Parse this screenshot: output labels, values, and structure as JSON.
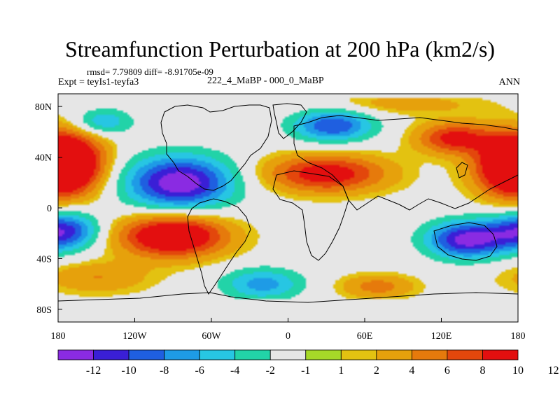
{
  "header": {
    "title": "Streamfunction Perturbation at 200 hPa (km2/s)",
    "stats": "rmsd= 7.79809 diff= -8.91705e-09",
    "left_label": "Expt = teyIs1-teyfa3",
    "center_label": "222_4_MaBP - 000_0_MaBP",
    "right_label": "ANN"
  },
  "map": {
    "projection": "cylindrical-equidistant",
    "lon_range": [
      -180,
      180
    ],
    "lat_range": [
      -90,
      90
    ],
    "lon_ticks": [
      {
        "value": -180,
        "label": "180"
      },
      {
        "value": -120,
        "label": "120W"
      },
      {
        "value": -60,
        "label": "60W"
      },
      {
        "value": 0,
        "label": "0"
      },
      {
        "value": 60,
        "label": "60E"
      },
      {
        "value": 120,
        "label": "120E"
      },
      {
        "value": 180,
        "label": "180"
      }
    ],
    "lat_ticks": [
      {
        "value": 80,
        "label": "80N"
      },
      {
        "value": 40,
        "label": "40N"
      },
      {
        "value": 0,
        "label": "0"
      },
      {
        "value": -40,
        "label": "40S"
      },
      {
        "value": -80,
        "label": "80S"
      }
    ],
    "anomalies": [
      {
        "name": "N Atlantic trough",
        "lon": -85,
        "lat": 20,
        "value": -14,
        "rx": 40,
        "ry": 20
      },
      {
        "name": "Asia ridge",
        "lon": 30,
        "lat": 27,
        "value": 10,
        "rx": 45,
        "ry": 14
      },
      {
        "name": "S America ridge",
        "lon": -90,
        "lat": -22,
        "value": 13,
        "rx": 40,
        "ry": 16
      },
      {
        "name": "Pacific ridge N",
        "lon": -175,
        "lat": 38,
        "value": 11,
        "rx": 28,
        "ry": 22
      },
      {
        "name": "Pacific ridge N east",
        "lon": 178,
        "lat": 30,
        "value": 10,
        "rx": 30,
        "ry": 22
      },
      {
        "name": "Pacific trough S",
        "lon": -175,
        "lat": -18,
        "value": -11,
        "rx": 25,
        "ry": 14
      },
      {
        "name": "Australia trough",
        "lon": 140,
        "lat": -25,
        "value": -13,
        "rx": 30,
        "ry": 14
      },
      {
        "name": "Eurasia trough",
        "lon": 35,
        "lat": 65,
        "value": -10,
        "rx": 30,
        "ry": 12
      },
      {
        "name": "NE Asia ridge",
        "lon": 130,
        "lat": 55,
        "value": 9,
        "rx": 28,
        "ry": 12
      },
      {
        "name": "NW Pacific trough",
        "lon": -145,
        "lat": 68,
        "value": -6,
        "rx": 22,
        "ry": 10
      },
      {
        "name": "S Atlantic trough",
        "lon": -20,
        "lat": -60,
        "value": -7,
        "rx": 30,
        "ry": 12
      },
      {
        "name": "SE Pacific ridge",
        "lon": -150,
        "lat": -55,
        "value": 4,
        "rx": 40,
        "ry": 12
      },
      {
        "name": "S Indian ridge",
        "lon": 70,
        "lat": -62,
        "value": 5,
        "rx": 28,
        "ry": 9
      },
      {
        "name": "Arctic ridge",
        "lon": 90,
        "lat": 82,
        "value": 3,
        "rx": 60,
        "ry": 8
      }
    ],
    "coastlines": "coarse-grid continental outlines"
  },
  "colorbar": {
    "colors": [
      "#8a2be2",
      "#3a1fd6",
      "#1f5fe0",
      "#1e9be6",
      "#27c6e3",
      "#22d3a8",
      "#e6e6e6",
      "#a6d928",
      "#e3c211",
      "#e6a10c",
      "#e67a0c",
      "#e3470c",
      "#e30f0f"
    ],
    "labels": [
      "-12",
      "-10",
      "-8",
      "-6",
      "-4",
      "-2",
      "-1",
      "1",
      "2",
      "4",
      "6",
      "8",
      "10",
      "12"
    ]
  }
}
